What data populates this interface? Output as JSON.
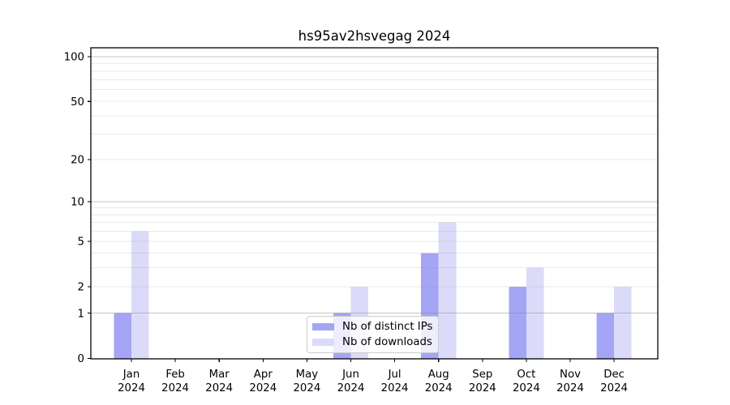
{
  "chart_data": {
    "type": "bar",
    "title": "hs95av2hsvegag 2024",
    "xlabel": "",
    "ylabel": "",
    "year": "2024",
    "categories": [
      "Jan",
      "Feb",
      "Mar",
      "Apr",
      "May",
      "Jun",
      "Jul",
      "Aug",
      "Sep",
      "Oct",
      "Nov",
      "Dec"
    ],
    "series": [
      {
        "name": "Nb of distinct IPs",
        "color": "#a5a5f5",
        "values": [
          1,
          0,
          0,
          0,
          0,
          1,
          0,
          4,
          0,
          2,
          0,
          1
        ]
      },
      {
        "name": "Nb of downloads",
        "color": "#dbdbf9",
        "values": [
          6,
          0,
          0,
          0,
          0,
          2,
          0,
          7,
          0,
          3,
          0,
          2
        ]
      }
    ],
    "yscale": "log1p",
    "ylim": [
      0,
      115
    ],
    "yticks": [
      0,
      1,
      2,
      5,
      10,
      20,
      50,
      100
    ],
    "decade_gridlines": [
      1,
      10,
      100
    ],
    "light_gridlines": [
      2,
      3,
      4,
      5,
      6,
      7,
      8,
      9,
      20,
      30,
      40,
      50,
      60,
      70,
      80,
      90
    ],
    "grid": true,
    "legend_position": "lower center"
  },
  "colors": {
    "grid_decade": "#c3c3c3",
    "grid_light": "#e9e9e9",
    "axis": "#000000",
    "text": "#000000",
    "background": "#ffffff"
  }
}
